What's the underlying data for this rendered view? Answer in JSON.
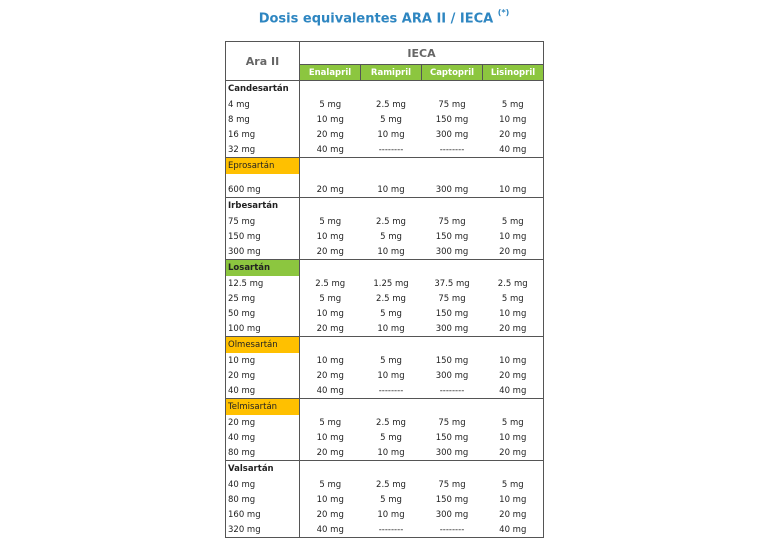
{
  "title": "Dosis equivalentes ARA II / IECA",
  "title_note": "(*)",
  "header": {
    "ara_label": "Ara II",
    "ieca_label": "IECA",
    "drugs": [
      "Enalapril",
      "Ramipril",
      "Captopril",
      "Lisinopril"
    ]
  },
  "colors": {
    "title": "#2e86c1",
    "green": "#8cc63f",
    "yellow": "#ffc000"
  },
  "groups": [
    {
      "name": "Candesartán",
      "highlight": "none",
      "rows": [
        [
          "4 mg",
          "5 mg",
          "2.5 mg",
          "75 mg",
          "5 mg"
        ],
        [
          "8 mg",
          "10 mg",
          "5 mg",
          "150 mg",
          "10 mg"
        ],
        [
          "16 mg",
          "20 mg",
          "10 mg",
          "300 mg",
          "20 mg"
        ],
        [
          "32 mg",
          "40 mg",
          "--------",
          "--------",
          "40 mg"
        ]
      ]
    },
    {
      "name": "Eprosartán",
      "highlight": "yellow",
      "gap": true,
      "rows": [
        [
          "600 mg",
          "20 mg",
          "10 mg",
          "300 mg",
          "10 mg"
        ]
      ]
    },
    {
      "name": "Irbesartán",
      "highlight": "none",
      "rows": [
        [
          "75 mg",
          "5 mg",
          "2.5 mg",
          "75 mg",
          "5 mg"
        ],
        [
          "150 mg",
          "10 mg",
          "5 mg",
          "150 mg",
          "10 mg"
        ],
        [
          "300 mg",
          "20 mg",
          "10 mg",
          "300 mg",
          "20 mg"
        ]
      ]
    },
    {
      "name": "Losartán",
      "highlight": "green",
      "rows": [
        [
          "12.5 mg",
          "2.5 mg",
          "1.25 mg",
          "37.5 mg",
          "2.5 mg"
        ],
        [
          "25 mg",
          "5 mg",
          "2.5 mg",
          "75 mg",
          "5 mg"
        ],
        [
          "50 mg",
          "10 mg",
          "5 mg",
          "150 mg",
          "10 mg"
        ],
        [
          "100 mg",
          "20 mg",
          "10 mg",
          "300 mg",
          "20 mg"
        ]
      ]
    },
    {
      "name": "Olmesartán",
      "highlight": "yellow",
      "rows": [
        [
          "10 mg",
          "10 mg",
          "5 mg",
          "150 mg",
          "10 mg"
        ],
        [
          "20 mg",
          "20 mg",
          "10 mg",
          "300 mg",
          "20 mg"
        ],
        [
          "40 mg",
          "40 mg",
          "--------",
          "--------",
          "40 mg"
        ]
      ]
    },
    {
      "name": "Telmisartán",
      "highlight": "yellow",
      "rows": [
        [
          "20 mg",
          "5 mg",
          "2.5 mg",
          "75 mg",
          "5 mg"
        ],
        [
          "40 mg",
          "10 mg",
          "5 mg",
          "150 mg",
          "10 mg"
        ],
        [
          "80 mg",
          "20 mg",
          "10 mg",
          "300 mg",
          "20 mg"
        ]
      ]
    },
    {
      "name": "Valsartán",
      "highlight": "none",
      "rows": [
        [
          "40 mg",
          "5 mg",
          "2.5 mg",
          "75 mg",
          "5 mg"
        ],
        [
          "80 mg",
          "10 mg",
          "5 mg",
          "150 mg",
          "10 mg"
        ],
        [
          "160 mg",
          "20 mg",
          "10 mg",
          "300 mg",
          "20 mg"
        ],
        [
          "320 mg",
          "40 mg",
          "--------",
          "--------",
          "40 mg"
        ]
      ]
    }
  ]
}
